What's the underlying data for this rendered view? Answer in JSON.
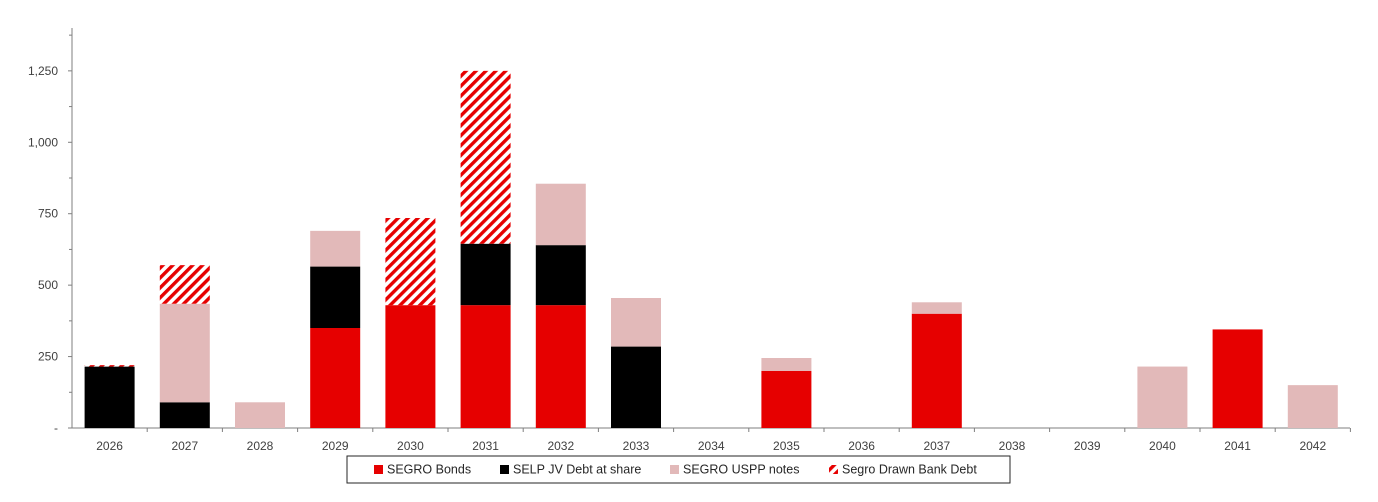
{
  "chart_data": {
    "type": "bar",
    "stacked": true,
    "categories": [
      "2026",
      "2027",
      "2028",
      "2029",
      "2030",
      "2031",
      "2032",
      "2033",
      "2034",
      "2035",
      "2036",
      "2037",
      "2038",
      "2039",
      "2040",
      "2041",
      "2042"
    ],
    "ylim": [
      0,
      1400
    ],
    "yticks": [
      0,
      250,
      500,
      750,
      1000,
      1250
    ],
    "ytick_labels": [
      "-",
      "250",
      "500",
      "750",
      "1,000",
      "1,250"
    ],
    "legend_position": "bottom",
    "grid": false,
    "series": [
      {
        "name": "SEGRO Bonds",
        "color": "#e60000",
        "pattern": "solid",
        "values": [
          0,
          0,
          0,
          350,
          430,
          430,
          430,
          0,
          0,
          200,
          0,
          400,
          0,
          0,
          0,
          345,
          0
        ]
      },
      {
        "name": "SELP JV Debt at share",
        "color": "#000000",
        "pattern": "solid",
        "values": [
          215,
          90,
          0,
          215,
          0,
          215,
          210,
          285,
          0,
          0,
          0,
          0,
          0,
          0,
          0,
          0,
          0
        ]
      },
      {
        "name": "SEGRO USPP notes",
        "color": "#e2b9b9",
        "pattern": "solid",
        "values": [
          0,
          345,
          90,
          125,
          0,
          0,
          215,
          170,
          0,
          45,
          0,
          40,
          0,
          0,
          215,
          0,
          150
        ]
      },
      {
        "name": "Segro Drawn Bank Debt",
        "color": "#e60000",
        "pattern": "hatch",
        "values": [
          5,
          135,
          0,
          0,
          305,
          605,
          0,
          0,
          0,
          0,
          0,
          0,
          0,
          0,
          0,
          0,
          0
        ]
      }
    ]
  }
}
